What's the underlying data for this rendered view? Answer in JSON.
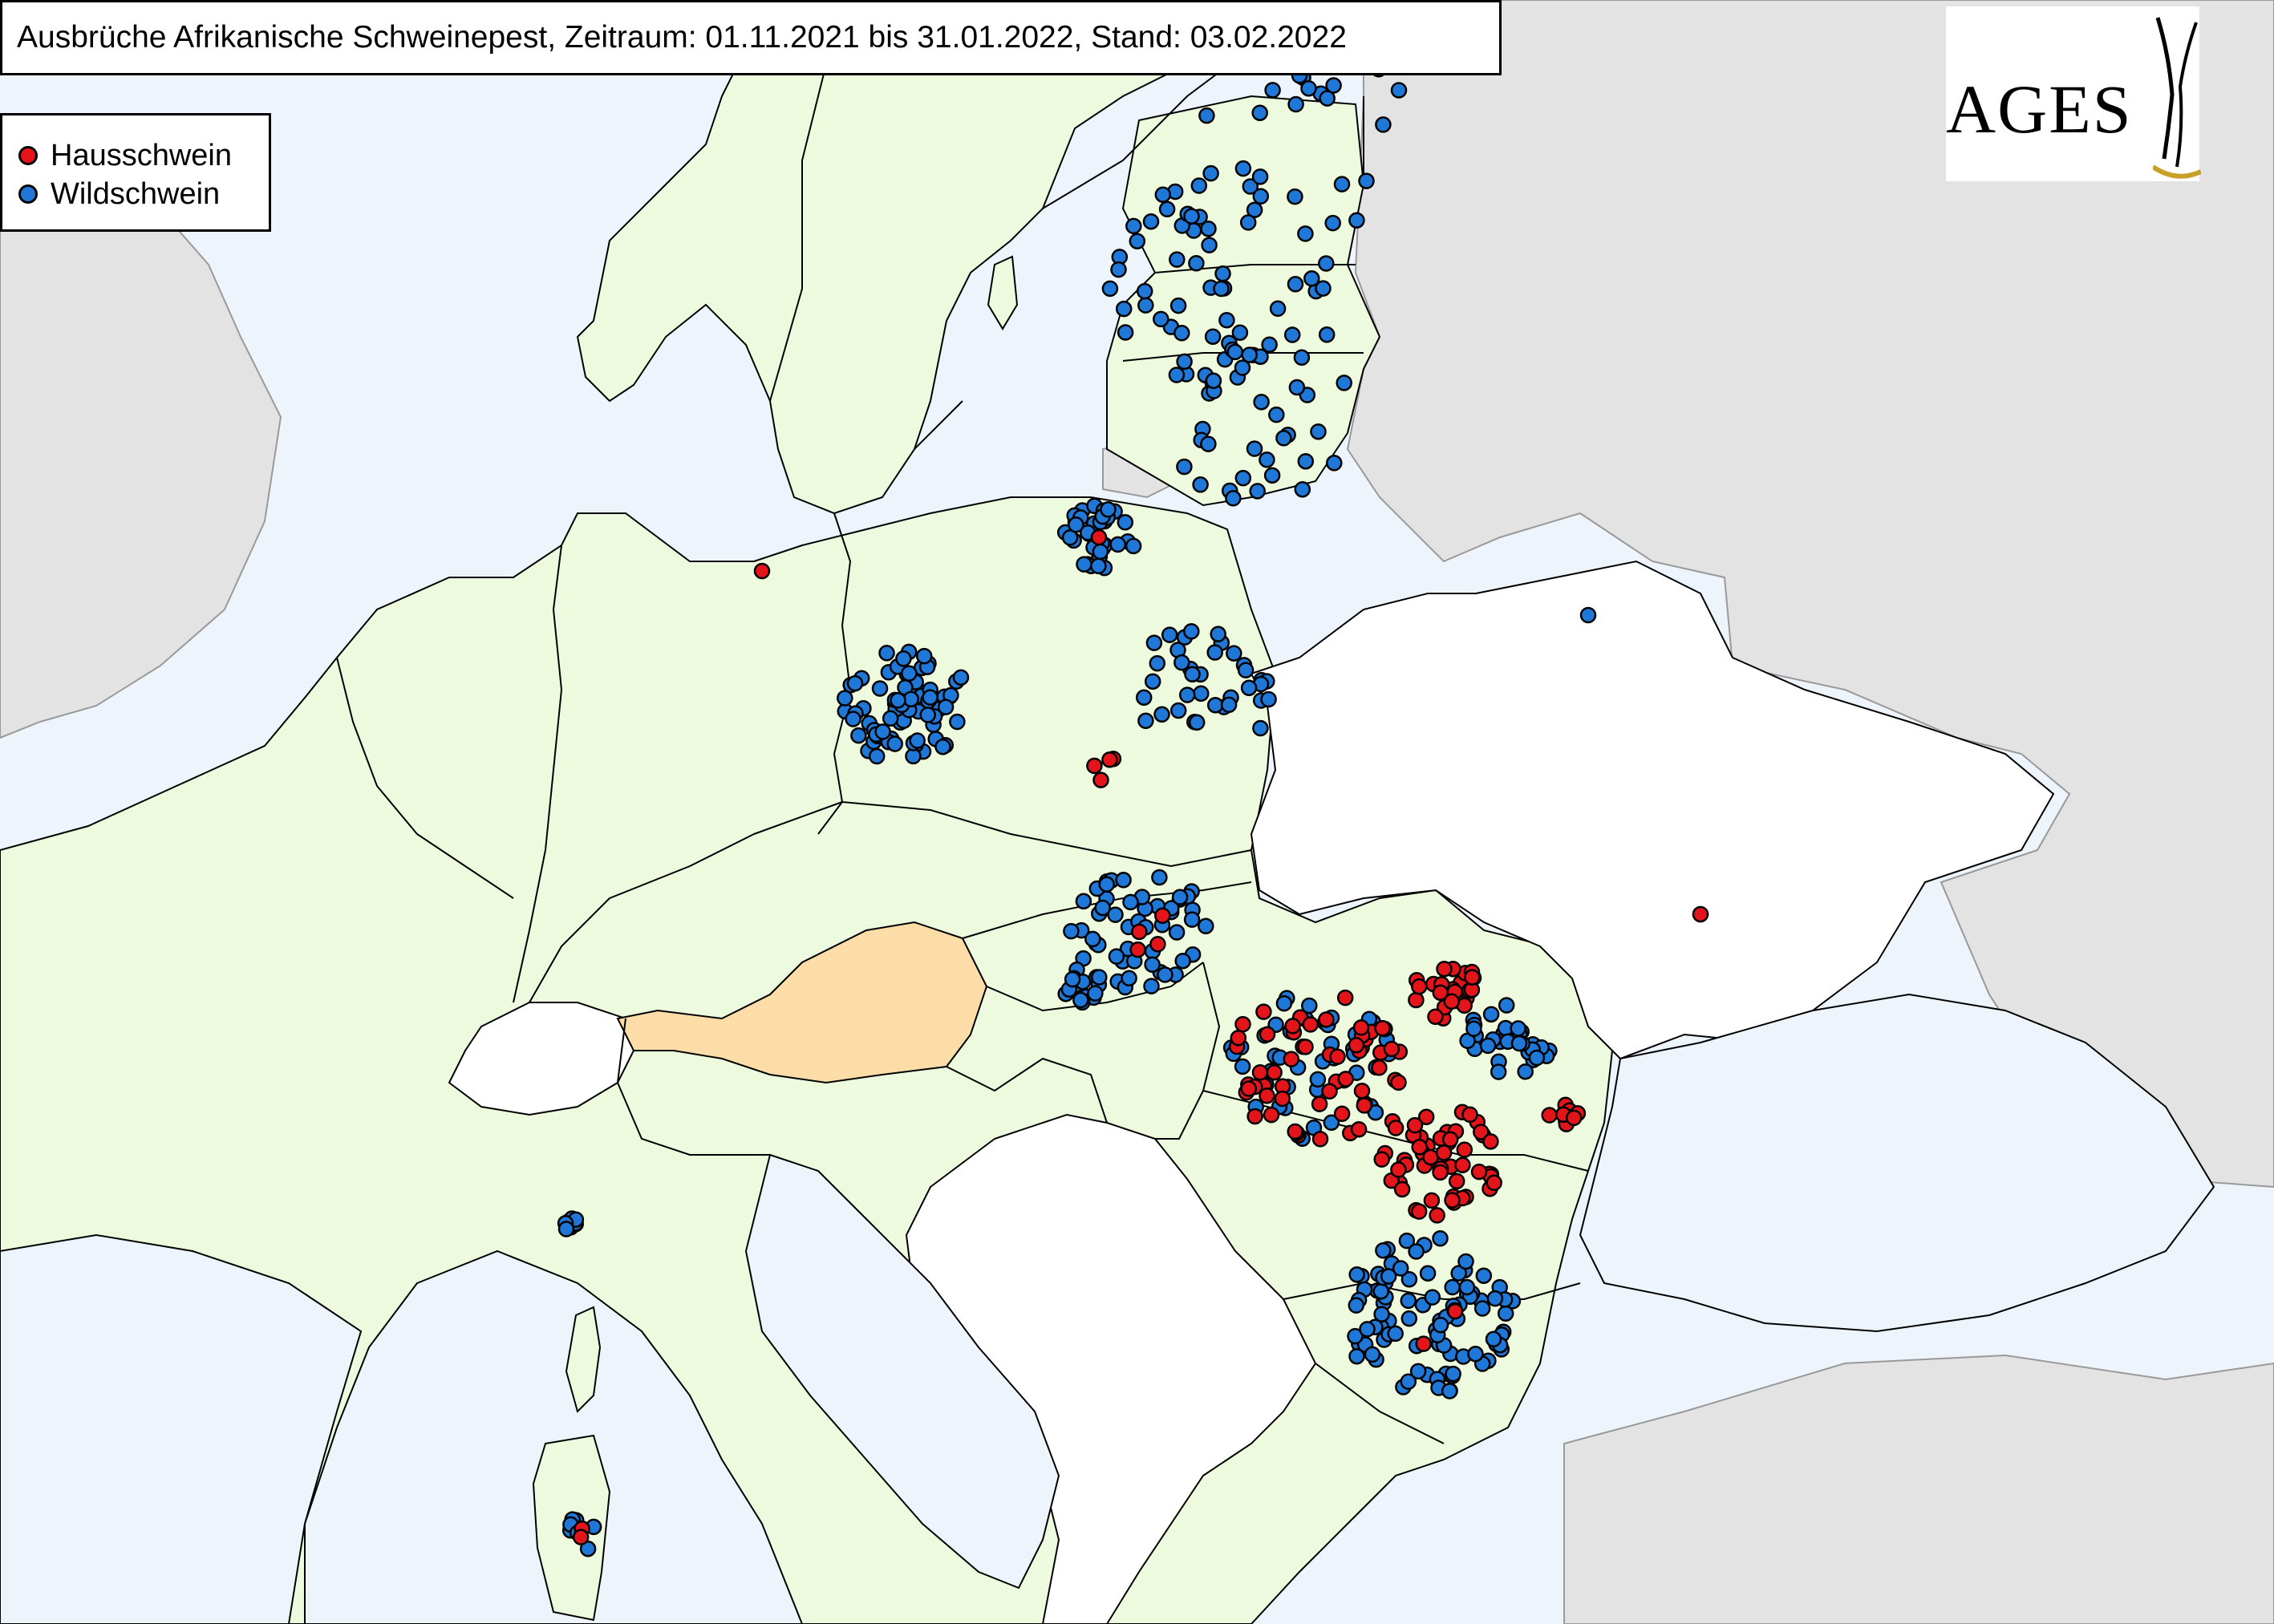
{
  "title": "Ausbrüche Afrikanische Schweinepest, Zeitraum: 01.11.2021 bis 31.01.2022, Stand: 03.02.2022",
  "legend": {
    "items": [
      {
        "label": "Hausschwein",
        "color": "#e3151b"
      },
      {
        "label": "Wildschwein",
        "color": "#1f78d8"
      }
    ]
  },
  "logo": {
    "text": "AGES"
  },
  "colors": {
    "sea": "#eef4fb",
    "eu_country": "#eefadd",
    "highlight_country": "#fcdca7",
    "non_eu": "#ffffff",
    "outside_area": "#e3e3e3",
    "border": "#000000"
  },
  "highlighted_country": "Austria",
  "outbreak_clusters": [
    {
      "type": "Wildschwein",
      "region": "Estonia",
      "count": 24,
      "spread": 140
    },
    {
      "type": "Wildschwein",
      "region": "Latvia",
      "count": 55,
      "spread": 150
    },
    {
      "type": "Wildschwein",
      "region": "Lithuania",
      "count": 34,
      "spread": 120
    },
    {
      "type": "Wildschwein",
      "region": "Poland NE",
      "count": 35,
      "spread": 45
    },
    {
      "type": "Hausschwein",
      "region": "Poland NE",
      "count": 1,
      "spread": 0
    },
    {
      "type": "Wildschwein",
      "region": "Poland E",
      "count": 36,
      "spread": 90
    },
    {
      "type": "Hausschwein",
      "region": "Poland central",
      "count": 4,
      "spread": 22
    },
    {
      "type": "Wildschwein",
      "region": "Germany Brandenburg",
      "count": 70,
      "spread": 80
    },
    {
      "type": "Hausschwein",
      "region": "Germany Mecklenburg",
      "count": 1,
      "spread": 0
    },
    {
      "type": "Wildschwein",
      "region": "Slovakia",
      "count": 50,
      "spread": 85
    },
    {
      "type": "Hausschwein",
      "region": "Slovakia",
      "count": 4,
      "spread": 50
    },
    {
      "type": "Wildschwein",
      "region": "Hungary NE",
      "count": 15,
      "spread": 25
    },
    {
      "type": "Hausschwein",
      "region": "Romania NW",
      "count": 55,
      "spread": 110
    },
    {
      "type": "Wildschwein",
      "region": "Romania NW",
      "count": 45,
      "spread": 110
    },
    {
      "type": "Hausschwein",
      "region": "Romania N",
      "count": 25,
      "spread": 45
    },
    {
      "type": "Wildschwein",
      "region": "Romania NE",
      "count": 30,
      "spread": 55
    },
    {
      "type": "Hausschwein",
      "region": "Romania central",
      "count": 55,
      "spread": 80
    },
    {
      "type": "Hausschwein",
      "region": "Romania E",
      "count": 8,
      "spread": 20
    },
    {
      "type": "Wildschwein",
      "region": "Bulgaria",
      "count": 90,
      "spread": 110
    },
    {
      "type": "Hausschwein",
      "region": "Bulgaria",
      "count": 3,
      "spread": 40
    },
    {
      "type": "Wildschwein",
      "region": "Italy Piedmont",
      "count": 8,
      "spread": 10
    },
    {
      "type": "Wildschwein",
      "region": "Sardinia",
      "count": 7,
      "spread": 25
    },
    {
      "type": "Hausschwein",
      "region": "Sardinia",
      "count": 2,
      "spread": 8
    },
    {
      "type": "Wildschwein",
      "region": "Belarus",
      "count": 1,
      "spread": 0
    },
    {
      "type": "Hausschwein",
      "region": "Ukraine",
      "count": 2,
      "spread": 0
    }
  ]
}
